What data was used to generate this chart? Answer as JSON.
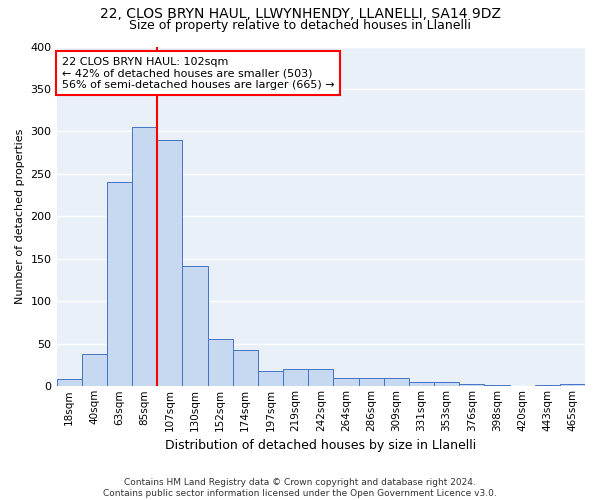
{
  "title1": "22, CLOS BRYN HAUL, LLWYNHENDY, LLANELLI, SA14 9DZ",
  "title2": "Size of property relative to detached houses in Llanelli",
  "xlabel": "Distribution of detached houses by size in Llanelli",
  "ylabel": "Number of detached properties",
  "footnote": "Contains HM Land Registry data © Crown copyright and database right 2024.\nContains public sector information licensed under the Open Government Licence v3.0.",
  "categories": [
    "18sqm",
    "40sqm",
    "63sqm",
    "85sqm",
    "107sqm",
    "130sqm",
    "152sqm",
    "174sqm",
    "197sqm",
    "219sqm",
    "242sqm",
    "264sqm",
    "286sqm",
    "309sqm",
    "331sqm",
    "353sqm",
    "376sqm",
    "398sqm",
    "420sqm",
    "443sqm",
    "465sqm"
  ],
  "values": [
    8,
    38,
    240,
    305,
    290,
    142,
    56,
    43,
    18,
    20,
    20,
    10,
    10,
    10,
    5,
    5,
    3,
    2,
    0,
    2,
    3
  ],
  "bar_color": "#c6d9f0",
  "bar_edge_color": "#4472c4",
  "vline_x": 4.0,
  "vline_color": "red",
  "annotation_line1": "22 CLOS BRYN HAUL: 102sqm",
  "annotation_line2": "← 42% of detached houses are smaller (503)",
  "annotation_line3": "56% of semi-detached houses are larger (665) →",
  "annotation_box_color": "white",
  "annotation_box_edge_color": "red",
  "background_color": "#eaf0f8",
  "ylim": [
    0,
    400
  ],
  "yticks": [
    0,
    50,
    100,
    150,
    200,
    250,
    300,
    350,
    400
  ]
}
